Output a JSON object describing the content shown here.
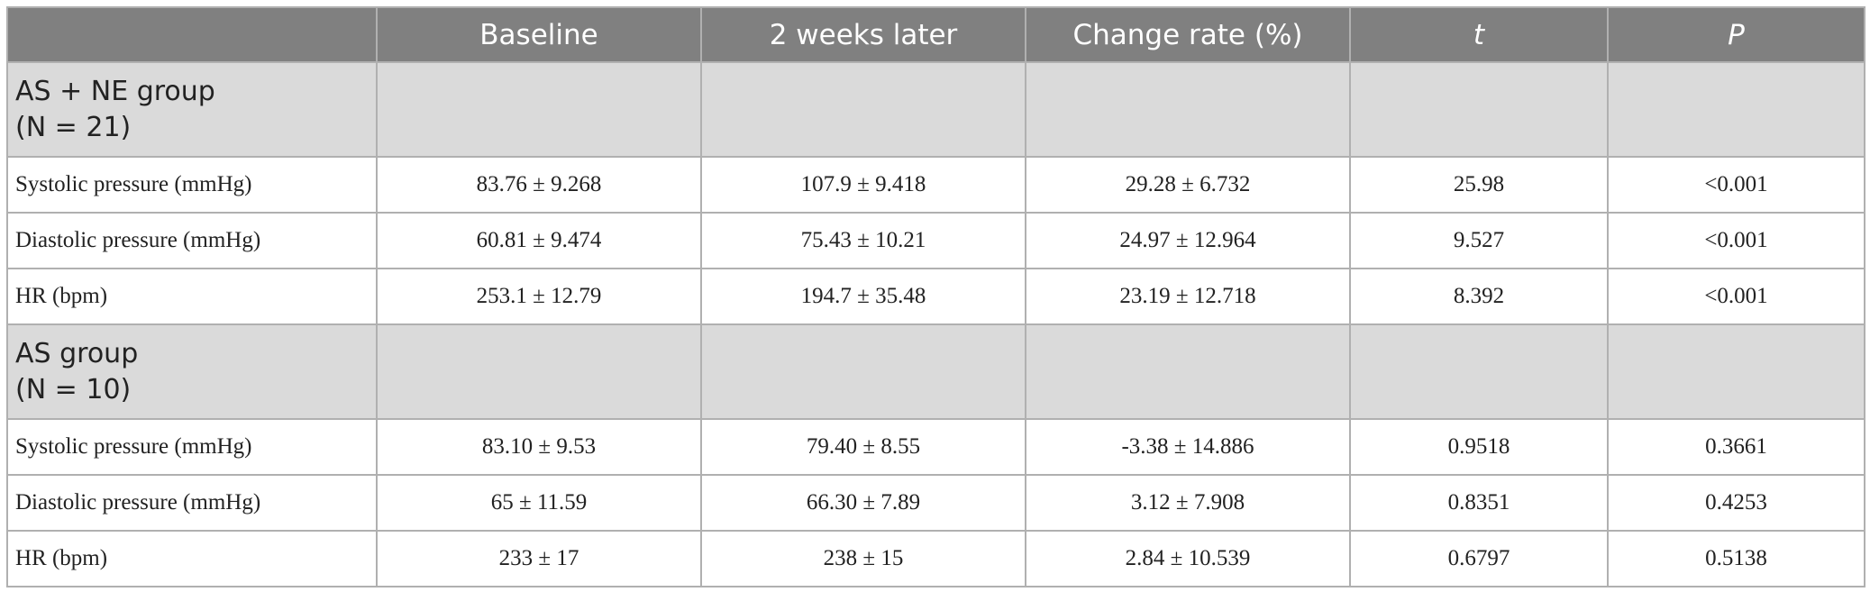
{
  "table": {
    "columns": [
      "Baseline",
      "2 weeks later",
      "Change rate (%)",
      "t",
      "P"
    ],
    "groups": [
      {
        "title": "AS + NE group",
        "n": "(N = 21)",
        "rows": [
          [
            "Systolic pressure (mmHg)",
            "83.76 ± 9.268",
            "107.9 ± 9.418",
            "29.28 ± 6.732",
            "25.98",
            "<0.001"
          ],
          [
            "Diastolic pressure (mmHg)",
            "60.81 ± 9.474",
            "75.43 ± 10.21",
            "24.97 ± 12.964",
            "9.527",
            "<0.001"
          ],
          [
            "HR (bpm)",
            "253.1 ± 12.79",
            "194.7 ± 35.48",
            "23.19 ± 12.718",
            "8.392",
            "<0.001"
          ]
        ]
      },
      {
        "title": "AS group",
        "n": "(N = 10)",
        "rows": [
          [
            "Systolic pressure (mmHg)",
            "83.10 ± 9.53",
            "79.40 ± 8.55",
            "-3.38 ± 14.886",
            "0.9518",
            "0.3661"
          ],
          [
            "Diastolic pressure (mmHg)",
            "65 ± 11.59",
            "66.30 ± 7.89",
            "3.12 ± 7.908",
            "0.8351",
            "0.4253"
          ],
          [
            "HR (bpm)",
            "233 ± 17",
            "238 ± 15",
            "2.84 ± 10.539",
            "0.6797",
            "0.5138"
          ]
        ]
      }
    ]
  }
}
